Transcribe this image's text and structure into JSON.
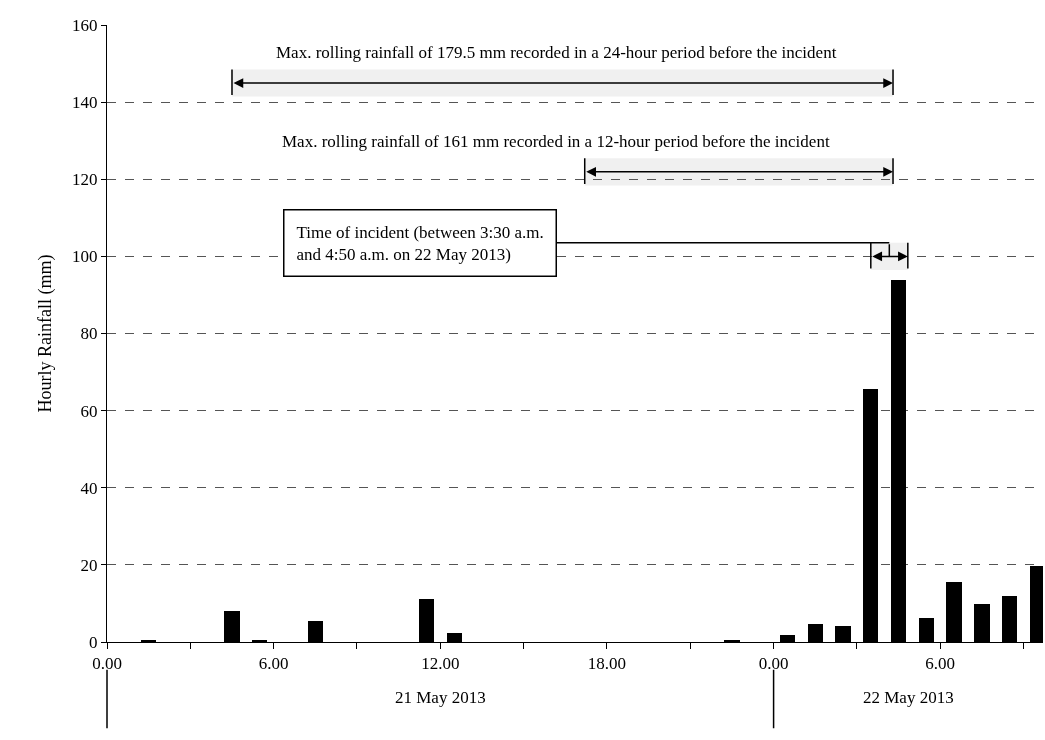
{
  "chart_data": {
    "type": "bar",
    "ylabel": "Hourly Rainfall (mm)",
    "x": [
      "2013-05-21T01:30",
      "2013-05-21T04:30",
      "2013-05-21T05:30",
      "2013-05-21T07:30",
      "2013-05-21T11:30",
      "2013-05-21T12:30",
      "2013-05-21T22:30",
      "2013-05-22T00:30",
      "2013-05-22T01:30",
      "2013-05-22T02:30",
      "2013-05-22T03:30",
      "2013-05-22T04:30",
      "2013-05-22T05:30",
      "2013-05-22T06:30",
      "2013-05-22T07:30",
      "2013-05-22T08:30",
      "2013-05-22T09:30"
    ],
    "values": [
      0.5,
      8,
      0.5,
      5.4,
      11.1,
      2.3,
      0.5,
      1.7,
      4.6,
      4.2,
      65.7,
      93.8,
      6.3,
      15.5,
      9.8,
      11.9,
      19.8
    ],
    "color": "#000000",
    "xlim": [
      "2013-05-21T00:00",
      "2013-05-22T09:42"
    ],
    "xticks": [
      {
        "value": "2013-05-21T00:00",
        "label": "0.00"
      },
      {
        "value": "2013-05-21T03:00",
        "label": null
      },
      {
        "value": "2013-05-21T06:00",
        "label": "6.00"
      },
      {
        "value": "2013-05-21T09:00",
        "label": null
      },
      {
        "value": "2013-05-21T12:00",
        "label": "12.00"
      },
      {
        "value": "2013-05-21T15:00",
        "label": null
      },
      {
        "value": "2013-05-21T18:00",
        "label": "18.00"
      },
      {
        "value": "2013-05-21T21:00",
        "label": null
      },
      {
        "value": "2013-05-22T00:00",
        "label": "0.00"
      },
      {
        "value": "2013-05-22T03:00",
        "label": null
      },
      {
        "value": "2013-05-22T06:00",
        "label": "6.00"
      },
      {
        "value": "2013-05-22T09:00",
        "label": null
      }
    ],
    "ylim": [
      0,
      160
    ],
    "yticks": [
      0,
      20,
      40,
      60,
      80,
      100,
      120,
      140,
      160
    ],
    "grid": "y",
    "bands": [
      {
        "axis": "x",
        "from": "2013-05-21T04:30",
        "to": "2013-05-22T04:18",
        "label": "Max. rolling rainfall of 179.5 mm recorded in a 24-hour period before the incident"
      },
      {
        "axis": "x",
        "from": "2013-05-21T17:12",
        "to": "2013-05-22T04:18",
        "label": "Max. rolling rainfall of 161 mm recorded in a 12-hour period before the incident"
      },
      {
        "axis": "x",
        "from": "2013-05-22T03:30",
        "to": "2013-05-22T04:50",
        "label": "Time of incident (between 3:30 a.m.\nand 4:50 a.m. on 22 May 2013)"
      }
    ],
    "annotations": [
      "21 May 2013",
      "22 May 2013"
    ]
  }
}
